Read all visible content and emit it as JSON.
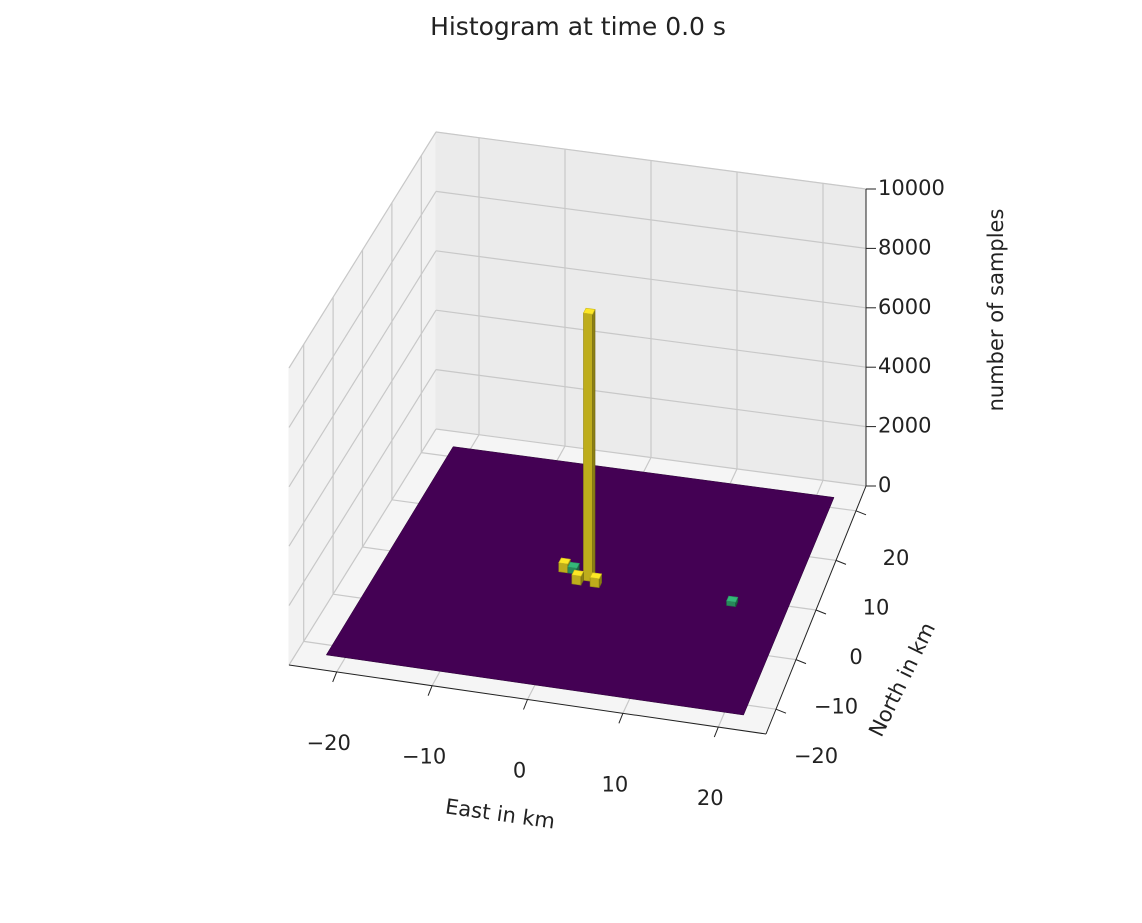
{
  "chart_data": {
    "type": "bar3d",
    "title": "Histogram at time 0.0 s",
    "xlabel": "East in km",
    "ylabel": "North in km",
    "zlabel": "number of samples",
    "x": [
      0,
      -3,
      -2,
      -1,
      1,
      16
    ],
    "y": [
      0,
      1,
      1,
      -1,
      -1,
      -1
    ],
    "values": [
      9000,
      300,
      200,
      300,
      300,
      150
    ],
    "colors": [
      "#fde725",
      "#fde725",
      "#35b779",
      "#fde725",
      "#fde725",
      "#35b779"
    ],
    "floor_color": "#440154",
    "xlim": [
      -25,
      25
    ],
    "ylim": [
      -25,
      25
    ],
    "zlim": [
      0,
      10000
    ],
    "xticks": [
      {
        "value": -20,
        "label": "−20"
      },
      {
        "value": -10,
        "label": "−10"
      },
      0,
      10,
      20
    ],
    "yticks": [
      {
        "value": -20,
        "label": "−20"
      },
      {
        "value": -10,
        "label": "−10"
      },
      0,
      10,
      20
    ],
    "zticks": [
      0,
      2000,
      4000,
      6000,
      8000,
      10000
    ],
    "grid": true
  }
}
